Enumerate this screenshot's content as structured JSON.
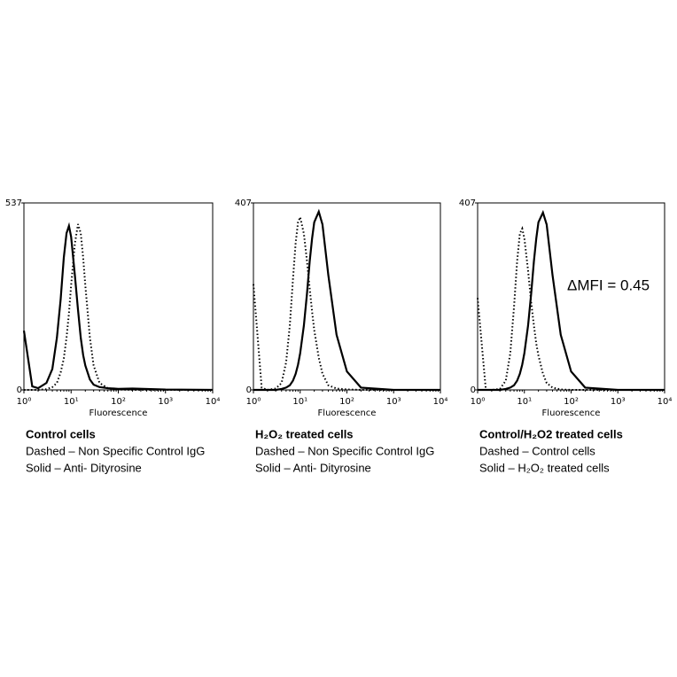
{
  "chart_data": [
    {
      "type": "line",
      "x_label": "Fluorescence",
      "xscale": "log",
      "xlim": [
        1,
        10000
      ],
      "xticks": [
        {
          "value": 1,
          "label": "10⁰"
        },
        {
          "value": 10,
          "label": "10¹"
        },
        {
          "value": 100,
          "label": "10²"
        },
        {
          "value": 1000,
          "label": "10³"
        },
        {
          "value": 10000,
          "label": "10⁴"
        }
      ],
      "ylim": [
        0,
        537
      ],
      "yticks": [
        0,
        537
      ],
      "captions": [
        "Control cells",
        "Dashed – Non Specific Control IgG",
        "Solid – Anti- Dityrosine"
      ],
      "x": [
        1,
        1.5,
        2,
        3,
        4,
        5,
        6,
        7,
        8,
        9,
        10,
        12,
        14,
        16,
        18,
        20,
        25,
        30,
        40,
        60,
        100,
        200,
        1000,
        10000
      ],
      "series": [
        {
          "style": "dashed",
          "color": "#000000",
          "values": [
            0,
            0,
            0,
            2,
            8,
            20,
            50,
            90,
            150,
            220,
            300,
            420,
            476,
            450,
            380,
            300,
            150,
            70,
            20,
            5,
            1,
            0,
            0,
            0
          ]
        },
        {
          "style": "solid",
          "color": "#000000",
          "values": [
            170,
            10,
            5,
            20,
            60,
            150,
            260,
            380,
            450,
            471,
            440,
            330,
            230,
            150,
            100,
            70,
            30,
            15,
            8,
            5,
            3,
            4,
            1,
            0
          ]
        }
      ]
    },
    {
      "type": "line",
      "x_label": "Fluorescence",
      "xscale": "log",
      "xlim": [
        1,
        10000
      ],
      "xticks": [
        {
          "value": 1,
          "label": "10⁰"
        },
        {
          "value": 10,
          "label": "10¹"
        },
        {
          "value": 100,
          "label": "10²"
        },
        {
          "value": 1000,
          "label": "10³"
        },
        {
          "value": 10000,
          "label": "10⁴"
        }
      ],
      "ylim": [
        0,
        407
      ],
      "yticks": [
        0,
        407
      ],
      "captions": [
        "H₂O₂ treated cells",
        "Dashed – Non Specific Control IgG",
        "Solid – Anti- Dityrosine"
      ],
      "x": [
        1,
        1.5,
        2,
        3,
        4,
        5,
        6,
        7,
        8,
        9,
        10,
        12,
        14,
        16,
        18,
        20,
        25,
        30,
        40,
        60,
        100,
        200,
        1000,
        10000
      ],
      "series": [
        {
          "style": "dashed",
          "color": "#000000",
          "values": [
            230,
            5,
            0,
            3,
            15,
            60,
            140,
            240,
            320,
            365,
            376,
            340,
            280,
            220,
            170,
            130,
            70,
            35,
            10,
            3,
            1,
            0,
            0,
            0
          ]
        },
        {
          "style": "solid",
          "color": "#000000",
          "values": [
            0,
            0,
            0,
            0,
            2,
            5,
            10,
            20,
            35,
            55,
            80,
            140,
            210,
            280,
            330,
            365,
            388,
            360,
            250,
            120,
            40,
            5,
            0,
            0
          ]
        }
      ]
    },
    {
      "type": "line",
      "x_label": "Fluorescence",
      "xscale": "log",
      "xlim": [
        1,
        10000
      ],
      "xticks": [
        {
          "value": 1,
          "label": "10⁰"
        },
        {
          "value": 10,
          "label": "10¹"
        },
        {
          "value": 100,
          "label": "10²"
        },
        {
          "value": 1000,
          "label": "10³"
        },
        {
          "value": 10000,
          "label": "10⁴"
        }
      ],
      "ylim": [
        0,
        407
      ],
      "yticks": [
        0,
        407
      ],
      "annotation": "ΔMFI = 0.45",
      "captions": [
        "Control/H₂O2 treated cells",
        "Dashed – Control cells",
        "Solid – H₂O₂ treated cells"
      ],
      "x": [
        1,
        1.5,
        2,
        3,
        4,
        5,
        6,
        7,
        8,
        9,
        10,
        12,
        14,
        16,
        18,
        20,
        25,
        30,
        40,
        60,
        100,
        200,
        1000,
        10000
      ],
      "series": [
        {
          "style": "dashed",
          "color": "#000000",
          "values": [
            200,
            0,
            0,
            2,
            20,
            80,
            180,
            280,
            340,
            351,
            330,
            260,
            190,
            140,
            100,
            75,
            35,
            15,
            5,
            1,
            0,
            0,
            0,
            0
          ]
        },
        {
          "style": "solid",
          "color": "#000000",
          "values": [
            0,
            0,
            0,
            0,
            2,
            5,
            10,
            20,
            35,
            55,
            80,
            140,
            210,
            280,
            330,
            365,
            386,
            360,
            250,
            120,
            40,
            5,
            0,
            0
          ]
        }
      ]
    }
  ]
}
